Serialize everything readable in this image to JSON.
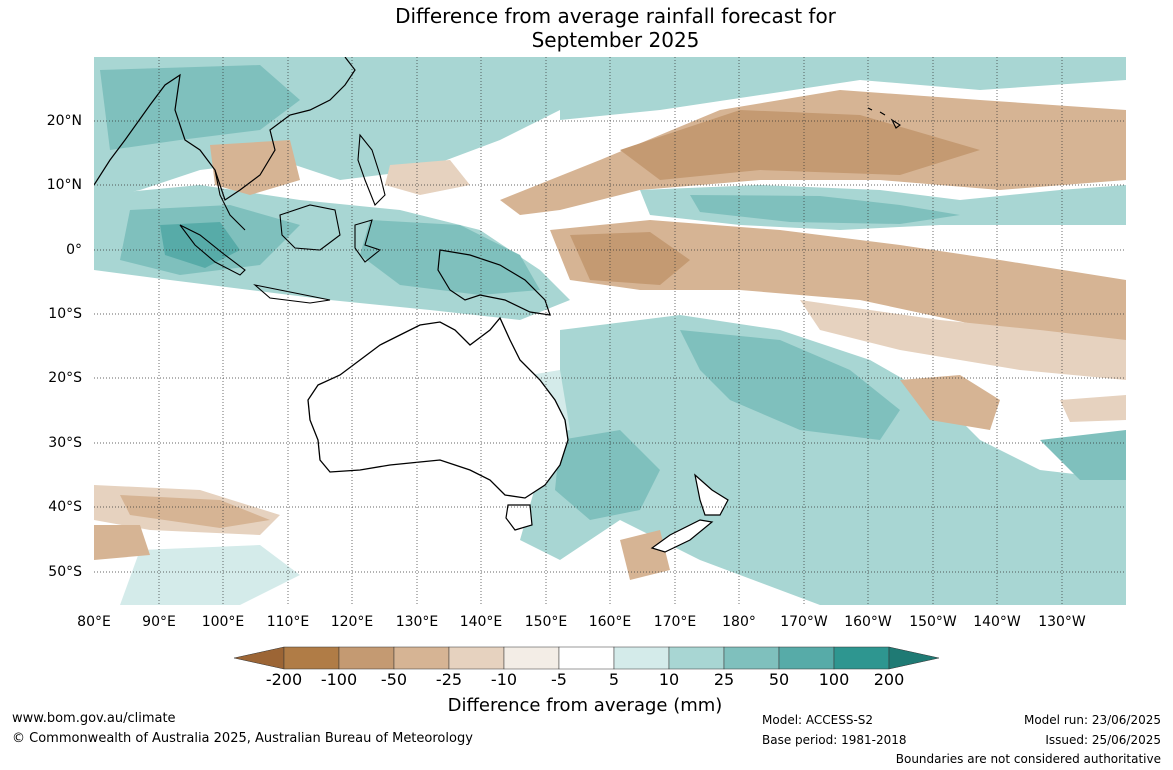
{
  "title": {
    "line1": "Difference from average rainfall forecast for",
    "line2": "September 2025"
  },
  "map": {
    "lat_ticks": [
      "20°N",
      "10°N",
      "0°",
      "10°S",
      "20°S",
      "30°S",
      "40°S",
      "50°S"
    ],
    "lon_ticks": [
      "80°E",
      "90°E",
      "100°E",
      "110°E",
      "120°E",
      "130°E",
      "140°E",
      "150°E",
      "160°E",
      "170°E",
      "180°",
      "170°W",
      "160°W",
      "150°W",
      "140°W",
      "130°W"
    ]
  },
  "colorbar": {
    "labels": [
      "-200",
      "-100",
      "-50",
      "-25",
      "-10",
      "-5",
      "5",
      "10",
      "25",
      "50",
      "100",
      "200"
    ],
    "colors": [
      "#9c6535",
      "#b07c46",
      "#c49a72",
      "#d6b494",
      "#e6d2bf",
      "#f3ede6",
      "#ffffff",
      "#d4ebea",
      "#a8d6d3",
      "#7fc0bd",
      "#57aba8",
      "#2e9690",
      "#1f7a74"
    ],
    "title": "Difference from average (mm)"
  },
  "footer": {
    "website": "www.bom.gov.au/climate",
    "copyright": "© Commonwealth of Australia 2025, Australian Bureau of Meteorology",
    "model": "Model: ACCESS-S2",
    "base_period": "Base period: 1981-2018",
    "model_run": "Model run: 23/06/2025",
    "issued": "Issued: 25/06/2025",
    "disclaimer": "Boundaries are not considered authoritative"
  }
}
